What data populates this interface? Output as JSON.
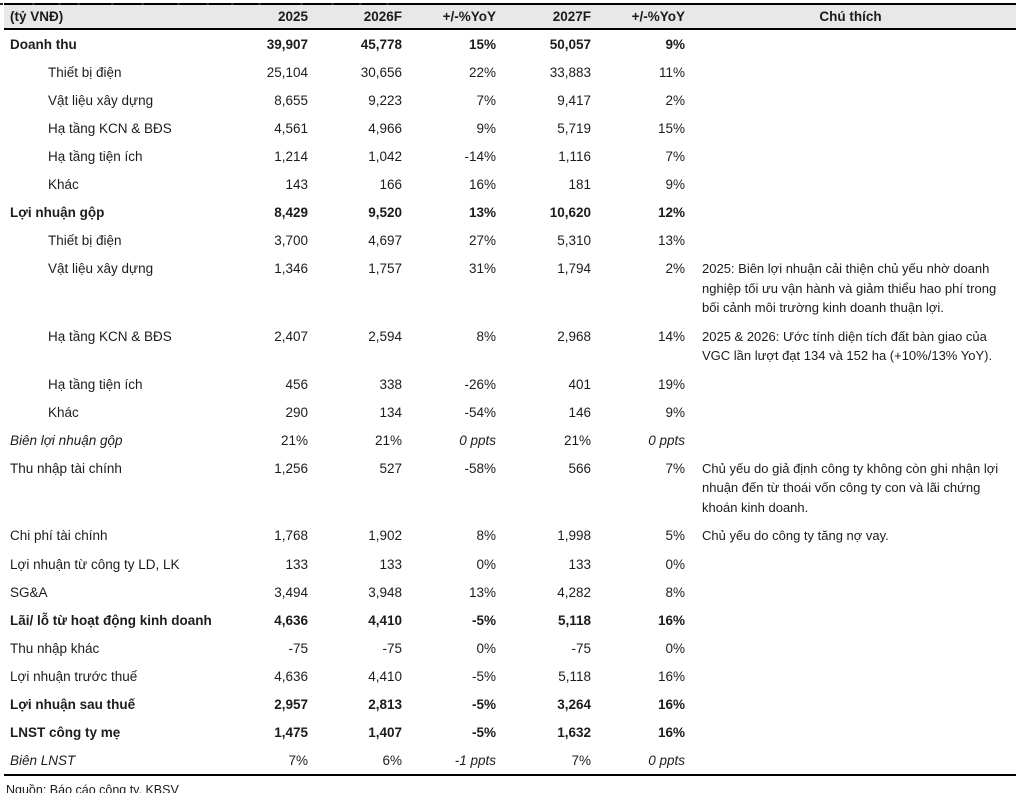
{
  "table": {
    "unit_header": "(tỷ VNĐ)",
    "columns": [
      "2025",
      "2026F",
      "+/-%YoY",
      "2027F",
      "+/-%YoY",
      "Chú thích"
    ],
    "rows": [
      {
        "label": "Doanh thu",
        "style": "bold",
        "indent": false,
        "values": [
          "39,907",
          "45,778",
          "15%",
          "50,057",
          "9%"
        ],
        "note": ""
      },
      {
        "label": "Thiết bị điện",
        "style": "normal",
        "indent": true,
        "values": [
          "25,104",
          "30,656",
          "22%",
          "33,883",
          "11%"
        ],
        "note": ""
      },
      {
        "label": "Vật liệu xây dựng",
        "style": "normal",
        "indent": true,
        "values": [
          "8,655",
          "9,223",
          "7%",
          "9,417",
          "2%"
        ],
        "note": ""
      },
      {
        "label": "Hạ tầng KCN & BĐS",
        "style": "normal",
        "indent": true,
        "values": [
          "4,561",
          "4,966",
          "9%",
          "5,719",
          "15%"
        ],
        "note": ""
      },
      {
        "label": "Hạ tầng tiện ích",
        "style": "normal",
        "indent": true,
        "values": [
          "1,214",
          "1,042",
          "-14%",
          "1,116",
          "7%"
        ],
        "note": ""
      },
      {
        "label": "Khác",
        "style": "normal",
        "indent": true,
        "values": [
          "143",
          "166",
          "16%",
          "181",
          "9%"
        ],
        "note": ""
      },
      {
        "label": "Lợi nhuận gộp",
        "style": "bold",
        "indent": false,
        "values": [
          "8,429",
          "9,520",
          "13%",
          "10,620",
          "12%"
        ],
        "note": ""
      },
      {
        "label": "Thiết bị điện",
        "style": "normal",
        "indent": true,
        "values": [
          "3,700",
          "4,697",
          "27%",
          "5,310",
          "13%"
        ],
        "note": ""
      },
      {
        "label": "Vật liệu xây dựng",
        "style": "normal",
        "indent": true,
        "values": [
          "1,346",
          "1,757",
          "31%",
          "1,794",
          "2%"
        ],
        "note": "2025: Biên lợi nhuận cải thiện chủ yếu nhờ doanh\nnghiệp tối ưu vận hành và giảm thiểu hao phí trong\nbối cảnh môi trường kinh doanh thuận lợi."
      },
      {
        "label": "Hạ tầng KCN & BĐS",
        "style": "normal",
        "indent": true,
        "values": [
          "2,407",
          "2,594",
          "8%",
          "2,968",
          "14%"
        ],
        "note": "2025 & 2026: Ước tính diện tích đất bàn giao của\nVGC lần lượt đạt 134 và 152 ha (+10%/13% YoY)."
      },
      {
        "label": "Hạ tầng tiện ích",
        "style": "normal",
        "indent": true,
        "values": [
          "456",
          "338",
          "-26%",
          "401",
          "19%"
        ],
        "note": ""
      },
      {
        "label": "Khác",
        "style": "normal",
        "indent": true,
        "values": [
          "290",
          "134",
          "-54%",
          "146",
          "9%"
        ],
        "note": ""
      },
      {
        "label": "Biên lợi nhuận gộp",
        "style": "italic",
        "indent": false,
        "values": [
          "21%",
          "21%",
          "0 ppts",
          "21%",
          "0 ppts"
        ],
        "note": ""
      },
      {
        "label": "Thu nhập tài chính",
        "style": "normal",
        "indent": false,
        "values": [
          "1,256",
          "527",
          "-58%",
          "566",
          "7%"
        ],
        "note": "Chủ yếu do giả định công ty không còn ghi nhận lợi\nnhuận đến từ thoái vốn công ty con và lãi chứng\nkhoán kinh doanh."
      },
      {
        "label": "Chi phí tài chính",
        "style": "normal",
        "indent": false,
        "values": [
          "1,768",
          "1,902",
          "8%",
          "1,998",
          "5%"
        ],
        "note": "Chủ yếu do công ty tăng nợ vay."
      },
      {
        "label": "Lợi nhuận từ công ty LD, LK",
        "style": "normal",
        "indent": false,
        "values": [
          "133",
          "133",
          "0%",
          "133",
          "0%"
        ],
        "note": ""
      },
      {
        "label": "SG&A",
        "style": "normal",
        "indent": false,
        "values": [
          "3,494",
          "3,948",
          "13%",
          "4,282",
          "8%"
        ],
        "note": ""
      },
      {
        "label": "Lãi/ lỗ từ hoạt động kinh doanh",
        "style": "bold",
        "indent": false,
        "values": [
          "4,636",
          "4,410",
          "-5%",
          "5,118",
          "16%"
        ],
        "note": ""
      },
      {
        "label": "Thu nhập khác",
        "style": "normal",
        "indent": false,
        "values": [
          "-75",
          "-75",
          "0%",
          "-75",
          "0%"
        ],
        "note": ""
      },
      {
        "label": "Lợi nhuận trước thuế",
        "style": "normal",
        "indent": false,
        "values": [
          "4,636",
          "4,410",
          "-5%",
          "5,118",
          "16%"
        ],
        "note": ""
      },
      {
        "label": "Lợi nhuận sau thuế",
        "style": "bold",
        "indent": false,
        "values": [
          "2,957",
          "2,813",
          "-5%",
          "3,264",
          "16%"
        ],
        "note": ""
      },
      {
        "label": "LNST công ty mẹ",
        "style": "bold",
        "indent": false,
        "values": [
          "1,475",
          "1,407",
          "-5%",
          "1,632",
          "16%"
        ],
        "note": ""
      },
      {
        "label": "Biên LNST",
        "style": "italic",
        "indent": false,
        "values": [
          "7%",
          "6%",
          "-1 ppts",
          "7%",
          "0 ppts"
        ],
        "note": ""
      }
    ]
  },
  "footer": {
    "source": "Nguồn: Báo cáo công ty, KBSV"
  },
  "colors": {
    "header_bg": "#e8e8e8",
    "border": "#000000",
    "text": "#1c1c1c"
  }
}
